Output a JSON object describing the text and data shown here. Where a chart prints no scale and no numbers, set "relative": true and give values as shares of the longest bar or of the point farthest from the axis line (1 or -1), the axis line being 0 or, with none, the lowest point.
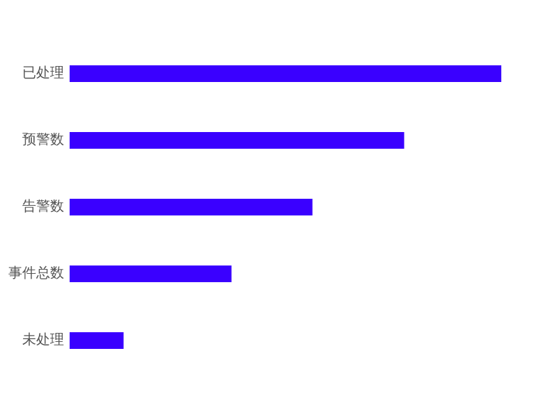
{
  "chart_data": {
    "type": "bar",
    "orientation": "horizontal",
    "relative": true,
    "color": "#3a00ff",
    "categories": [
      "已处理",
      "预警数",
      "告警数",
      "事件总数",
      "未处理"
    ],
    "values": [
      1,
      0.775,
      0.5625,
      0.375,
      0.125
    ]
  }
}
